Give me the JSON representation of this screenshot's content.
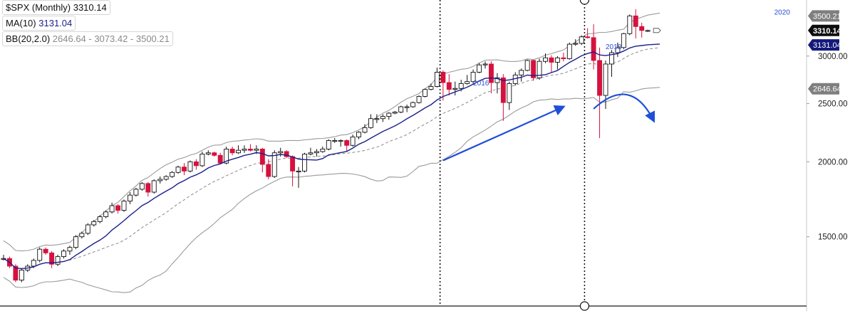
{
  "chart_data": {
    "type": "candlestick",
    "title": "$SPX (Monthly)",
    "symbol": "$SPX",
    "interval": "Monthly",
    "last_price": "3310.14",
    "scale": "log",
    "ylim": [
      1150,
      3700
    ],
    "y_ticks": [
      "1500.00",
      "2000.00",
      "2500.00",
      "3000.00"
    ],
    "price_labels": [
      {
        "text": "3500.21",
        "value": 3500.21,
        "style": "gray"
      },
      {
        "text": "3310.14",
        "value": 3310.14,
        "style": "black"
      },
      {
        "text": "3131.04",
        "value": 3131.04,
        "style": "navy"
      },
      {
        "text": "2646.64",
        "value": 2646.64,
        "style": "gray"
      }
    ],
    "indicators": [
      {
        "label": "MA(10)",
        "values_text": "3131.04",
        "color": "#1b1f8a"
      },
      {
        "label": "BB(20,2.0)",
        "values_text": "2646.64 - 3073.42 - 3500.21",
        "color": "#8a8a8a"
      }
    ],
    "year_labels": [
      {
        "text": "2016",
        "index": 78,
        "price": 2680
      },
      {
        "text": "2018",
        "index": 100,
        "price": 3080
      },
      {
        "text": "2020",
        "index": 128,
        "price": 3520
      }
    ],
    "vertical_markers": [
      {
        "index": 72,
        "style": "dotted"
      },
      {
        "index": 96,
        "style": "dotted-circle"
      }
    ],
    "annotations": [
      {
        "kind": "straight-arrow",
        "from": [
          73,
          2010
        ],
        "to": [
          93,
          2470
        ],
        "color": "#1f4fd8"
      },
      {
        "kind": "curved-arrow",
        "from": [
          98,
          2450
        ],
        "to": [
          108,
          2340
        ],
        "color": "#1f4fd8"
      }
    ],
    "colors": {
      "up": "#ffffff",
      "down": "#d5123e",
      "ma": "#1b1f8a",
      "bands": "#9a9a9a",
      "mid": "#8a8a8a",
      "arrow": "#1f4fd8"
    },
    "candles": [
      {
        "o": 1380,
        "h": 1400,
        "l": 1370,
        "c": 1380
      },
      {
        "o": 1380,
        "h": 1390,
        "l": 1330,
        "c": 1340
      },
      {
        "o": 1340,
        "h": 1350,
        "l": 1260,
        "c": 1270
      },
      {
        "o": 1270,
        "h": 1330,
        "l": 1260,
        "c": 1320
      },
      {
        "o": 1320,
        "h": 1350,
        "l": 1310,
        "c": 1340
      },
      {
        "o": 1340,
        "h": 1380,
        "l": 1330,
        "c": 1370
      },
      {
        "o": 1370,
        "h": 1440,
        "l": 1360,
        "c": 1430
      },
      {
        "o": 1430,
        "h": 1440,
        "l": 1400,
        "c": 1410
      },
      {
        "o": 1410,
        "h": 1420,
        "l": 1330,
        "c": 1350
      },
      {
        "o": 1350,
        "h": 1400,
        "l": 1340,
        "c": 1390
      },
      {
        "o": 1390,
        "h": 1430,
        "l": 1380,
        "c": 1420
      },
      {
        "o": 1420,
        "h": 1450,
        "l": 1400,
        "c": 1440
      },
      {
        "o": 1440,
        "h": 1510,
        "l": 1430,
        "c": 1500
      },
      {
        "o": 1500,
        "h": 1530,
        "l": 1490,
        "c": 1520
      },
      {
        "o": 1520,
        "h": 1580,
        "l": 1510,
        "c": 1570
      },
      {
        "o": 1570,
        "h": 1600,
        "l": 1560,
        "c": 1590
      },
      {
        "o": 1590,
        "h": 1630,
        "l": 1580,
        "c": 1620
      },
      {
        "o": 1620,
        "h": 1660,
        "l": 1610,
        "c": 1650
      },
      {
        "o": 1650,
        "h": 1710,
        "l": 1640,
        "c": 1690
      },
      {
        "o": 1690,
        "h": 1700,
        "l": 1640,
        "c": 1660
      },
      {
        "o": 1660,
        "h": 1730,
        "l": 1650,
        "c": 1720
      },
      {
        "o": 1720,
        "h": 1780,
        "l": 1700,
        "c": 1760
      },
      {
        "o": 1760,
        "h": 1810,
        "l": 1750,
        "c": 1800
      },
      {
        "o": 1800,
        "h": 1850,
        "l": 1790,
        "c": 1840
      },
      {
        "o": 1840,
        "h": 1850,
        "l": 1750,
        "c": 1780
      },
      {
        "o": 1780,
        "h": 1870,
        "l": 1770,
        "c": 1860
      },
      {
        "o": 1860,
        "h": 1890,
        "l": 1840,
        "c": 1870
      },
      {
        "o": 1870,
        "h": 1900,
        "l": 1860,
        "c": 1890
      },
      {
        "o": 1890,
        "h": 1930,
        "l": 1880,
        "c": 1920
      },
      {
        "o": 1920,
        "h": 1970,
        "l": 1910,
        "c": 1960
      },
      {
        "o": 1960,
        "h": 1990,
        "l": 1900,
        "c": 1930
      },
      {
        "o": 1930,
        "h": 2010,
        "l": 1920,
        "c": 2000
      },
      {
        "o": 2000,
        "h": 2020,
        "l": 1940,
        "c": 1970
      },
      {
        "o": 1970,
        "h": 2080,
        "l": 1960,
        "c": 2060
      },
      {
        "o": 2060,
        "h": 2090,
        "l": 2050,
        "c": 2070
      },
      {
        "o": 2070,
        "h": 2080,
        "l": 2040,
        "c": 2050
      },
      {
        "o": 2050,
        "h": 2070,
        "l": 1980,
        "c": 1990
      },
      {
        "o": 1990,
        "h": 2120,
        "l": 1980,
        "c": 2100
      },
      {
        "o": 2100,
        "h": 2120,
        "l": 2050,
        "c": 2070
      },
      {
        "o": 2070,
        "h": 2130,
        "l": 2060,
        "c": 2090
      },
      {
        "o": 2090,
        "h": 2130,
        "l": 2070,
        "c": 2100
      },
      {
        "o": 2100,
        "h": 2140,
        "l": 2080,
        "c": 2090
      },
      {
        "o": 2090,
        "h": 2130,
        "l": 2060,
        "c": 2100
      },
      {
        "o": 2100,
        "h": 2110,
        "l": 1920,
        "c": 1980
      },
      {
        "o": 1980,
        "h": 2020,
        "l": 1870,
        "c": 1890
      },
      {
        "o": 1890,
        "h": 2090,
        "l": 1880,
        "c": 2070
      },
      {
        "o": 2070,
        "h": 2110,
        "l": 2040,
        "c": 2080
      },
      {
        "o": 2080,
        "h": 2090,
        "l": 2030,
        "c": 2040
      },
      {
        "o": 2040,
        "h": 2050,
        "l": 1820,
        "c": 1930
      },
      {
        "o": 1930,
        "h": 1960,
        "l": 1810,
        "c": 1930
      },
      {
        "o": 1930,
        "h": 2070,
        "l": 1920,
        "c": 2060
      },
      {
        "o": 2060,
        "h": 2110,
        "l": 2050,
        "c": 2070
      },
      {
        "o": 2070,
        "h": 2100,
        "l": 2040,
        "c": 2080
      },
      {
        "o": 2080,
        "h": 2120,
        "l": 2070,
        "c": 2100
      },
      {
        "o": 2100,
        "h": 2180,
        "l": 2090,
        "c": 2170
      },
      {
        "o": 2170,
        "h": 2190,
        "l": 2150,
        "c": 2170
      },
      {
        "o": 2170,
        "h": 2180,
        "l": 2120,
        "c": 2170
      },
      {
        "o": 2170,
        "h": 2180,
        "l": 2080,
        "c": 2130
      },
      {
        "o": 2130,
        "h": 2220,
        "l": 2120,
        "c": 2200
      },
      {
        "o": 2200,
        "h": 2250,
        "l": 2180,
        "c": 2240
      },
      {
        "o": 2240,
        "h": 2310,
        "l": 2230,
        "c": 2280
      },
      {
        "o": 2280,
        "h": 2400,
        "l": 2270,
        "c": 2360
      },
      {
        "o": 2360,
        "h": 2400,
        "l": 2320,
        "c": 2360
      },
      {
        "o": 2360,
        "h": 2400,
        "l": 2330,
        "c": 2380
      },
      {
        "o": 2380,
        "h": 2420,
        "l": 2350,
        "c": 2410
      },
      {
        "o": 2410,
        "h": 2430,
        "l": 2400,
        "c": 2420
      },
      {
        "o": 2420,
        "h": 2480,
        "l": 2410,
        "c": 2470
      },
      {
        "o": 2470,
        "h": 2490,
        "l": 2420,
        "c": 2470
      },
      {
        "o": 2470,
        "h": 2520,
        "l": 2460,
        "c": 2510
      },
      {
        "o": 2510,
        "h": 2580,
        "l": 2500,
        "c": 2570
      },
      {
        "o": 2570,
        "h": 2650,
        "l": 2560,
        "c": 2640
      },
      {
        "o": 2640,
        "h": 2700,
        "l": 2630,
        "c": 2670
      },
      {
        "o": 2670,
        "h": 2870,
        "l": 2660,
        "c": 2820
      },
      {
        "o": 2820,
        "h": 2840,
        "l": 2530,
        "c": 2710
      },
      {
        "o": 2710,
        "h": 2800,
        "l": 2580,
        "c": 2640
      },
      {
        "o": 2640,
        "h": 2720,
        "l": 2580,
        "c": 2650
      },
      {
        "o": 2650,
        "h": 2740,
        "l": 2620,
        "c": 2700
      },
      {
        "o": 2700,
        "h": 2790,
        "l": 2690,
        "c": 2720
      },
      {
        "o": 2720,
        "h": 2850,
        "l": 2700,
        "c": 2820
      },
      {
        "o": 2820,
        "h": 2920,
        "l": 2810,
        "c": 2900
      },
      {
        "o": 2900,
        "h": 2940,
        "l": 2860,
        "c": 2910
      },
      {
        "o": 2910,
        "h": 2940,
        "l": 2600,
        "c": 2710
      },
      {
        "o": 2710,
        "h": 2810,
        "l": 2600,
        "c": 2760
      },
      {
        "o": 2760,
        "h": 2800,
        "l": 2340,
        "c": 2510
      },
      {
        "o": 2510,
        "h": 2720,
        "l": 2440,
        "c": 2700
      },
      {
        "o": 2700,
        "h": 2820,
        "l": 2680,
        "c": 2790
      },
      {
        "o": 2790,
        "h": 2860,
        "l": 2720,
        "c": 2840
      },
      {
        "o": 2840,
        "h": 2960,
        "l": 2830,
        "c": 2950
      },
      {
        "o": 2950,
        "h": 2960,
        "l": 2730,
        "c": 2760
      },
      {
        "o": 2760,
        "h": 2970,
        "l": 2740,
        "c": 2940
      },
      {
        "o": 2940,
        "h": 3030,
        "l": 2920,
        "c": 2980
      },
      {
        "o": 2980,
        "h": 3010,
        "l": 2820,
        "c": 2930
      },
      {
        "o": 2930,
        "h": 3000,
        "l": 2850,
        "c": 2980
      },
      {
        "o": 2980,
        "h": 3040,
        "l": 2940,
        "c": 2970
      },
      {
        "o": 2970,
        "h": 3160,
        "l": 2960,
        "c": 3140
      },
      {
        "o": 3140,
        "h": 3200,
        "l": 3120,
        "c": 3150
      },
      {
        "o": 3150,
        "h": 3250,
        "l": 3130,
        "c": 3230
      },
      {
        "o": 3230,
        "h": 3340,
        "l": 3210,
        "c": 3220
      },
      {
        "o": 3220,
        "h": 3390,
        "l": 2850,
        "c": 2950
      },
      {
        "o": 2950,
        "h": 3100,
        "l": 2190,
        "c": 2580
      },
      {
        "o": 2580,
        "h": 2950,
        "l": 2450,
        "c": 2910
      },
      {
        "o": 2910,
        "h": 3070,
        "l": 2770,
        "c": 3040
      },
      {
        "o": 3040,
        "h": 3160,
        "l": 2990,
        "c": 3100
      },
      {
        "o": 3100,
        "h": 3280,
        "l": 3080,
        "c": 3270
      },
      {
        "o": 3270,
        "h": 3520,
        "l": 3250,
        "c": 3500
      },
      {
        "o": 3500,
        "h": 3590,
        "l": 3210,
        "c": 3360
      },
      {
        "o": 3360,
        "h": 3410,
        "l": 3220,
        "c": 3310
      },
      {
        "o": 3310,
        "h": 3320,
        "l": 3290,
        "c": 3310
      }
    ]
  }
}
